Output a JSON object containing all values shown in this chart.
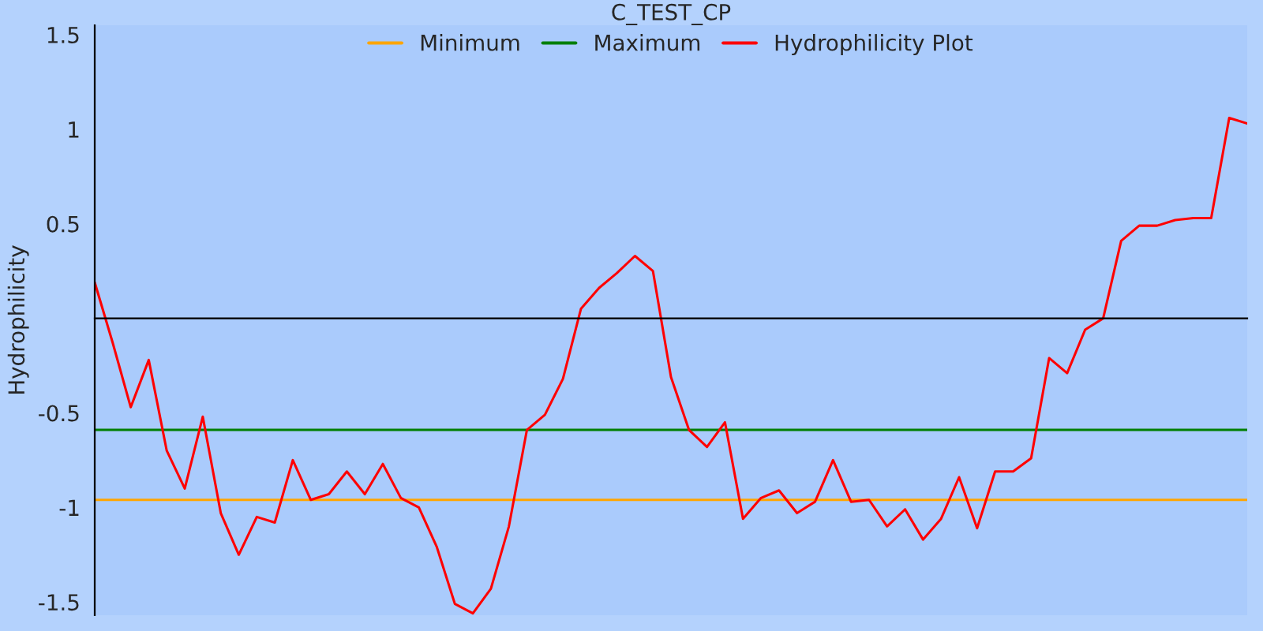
{
  "chart_data": {
    "type": "line",
    "title": "C_TEST_CP",
    "ylabel": "Hydrophilicity",
    "categories": [
      null,
      null,
      null,
      null,
      null,
      null,
      null,
      null,
      null,
      null,
      null,
      null,
      null,
      null,
      null,
      null,
      null,
      null,
      null,
      null,
      null,
      null,
      null,
      null,
      null,
      null,
      null,
      null,
      null,
      null,
      null,
      null,
      null,
      null,
      null,
      null,
      null,
      null,
      null,
      null,
      null,
      null,
      null,
      null,
      null,
      null,
      null,
      null,
      null,
      null,
      null,
      null,
      null,
      null,
      null,
      null,
      null,
      null,
      null,
      null,
      null,
      null,
      null,
      null,
      null
    ],
    "series": [
      {
        "name": "Minimum",
        "color": "#ffa500",
        "values": [
          -0.96,
          -0.96,
          -0.96,
          -0.96,
          -0.96,
          -0.96,
          -0.96,
          -0.96,
          -0.96,
          -0.96,
          -0.96,
          -0.96,
          -0.96,
          -0.96,
          -0.96,
          -0.96,
          -0.96,
          -0.96,
          -0.96,
          -0.96,
          -0.96,
          -0.96,
          -0.96,
          -0.96,
          -0.96,
          -0.96,
          -0.96,
          -0.96,
          -0.96,
          -0.96,
          -0.96,
          -0.96,
          -0.96,
          -0.96,
          -0.96,
          -0.96,
          -0.96,
          -0.96,
          -0.96,
          -0.96,
          -0.96,
          -0.96,
          -0.96,
          -0.96,
          -0.96,
          -0.96,
          -0.96,
          -0.96,
          -0.96,
          -0.96,
          -0.96,
          -0.96,
          -0.96,
          -0.96,
          -0.96,
          -0.96,
          -0.96,
          -0.96,
          -0.96,
          -0.96,
          -0.96,
          -0.96,
          -0.96,
          -0.96,
          -0.96
        ]
      },
      {
        "name": "Maximum",
        "color": "#007f00",
        "values": [
          -0.59,
          -0.59,
          -0.59,
          -0.59,
          -0.59,
          -0.59,
          -0.59,
          -0.59,
          -0.59,
          -0.59,
          -0.59,
          -0.59,
          -0.59,
          -0.59,
          -0.59,
          -0.59,
          -0.59,
          -0.59,
          -0.59,
          -0.59,
          -0.59,
          -0.59,
          -0.59,
          -0.59,
          -0.59,
          -0.59,
          -0.59,
          -0.59,
          -0.59,
          -0.59,
          -0.59,
          -0.59,
          -0.59,
          -0.59,
          -0.59,
          -0.59,
          -0.59,
          -0.59,
          -0.59,
          -0.59,
          -0.59,
          -0.59,
          -0.59,
          -0.59,
          -0.59,
          -0.59,
          -0.59,
          -0.59,
          -0.59,
          -0.59,
          -0.59,
          -0.59,
          -0.59,
          -0.59,
          -0.59,
          -0.59,
          -0.59,
          -0.59,
          -0.59,
          -0.59,
          -0.59,
          -0.59,
          -0.59,
          -0.59,
          -0.59
        ]
      },
      {
        "name": "Hydrophilicity Plot",
        "color": "#ff0000",
        "values": [
          0.19,
          -0.13,
          -0.47,
          -0.22,
          -0.7,
          -0.9,
          -0.52,
          -1.03,
          -1.25,
          -1.05,
          -1.08,
          -0.75,
          -0.96,
          -0.93,
          -0.81,
          -0.93,
          -0.77,
          -0.95,
          -1.0,
          -1.21,
          -1.51,
          -1.56,
          -1.43,
          -1.1,
          -0.59,
          -0.51,
          -0.32,
          0.05,
          0.16,
          0.24,
          0.33,
          0.25,
          -0.31,
          -0.59,
          -0.68,
          -0.55,
          -1.06,
          -0.95,
          -0.91,
          -1.03,
          -0.97,
          -0.75,
          -0.97,
          -0.96,
          -1.1,
          -1.01,
          -1.17,
          -1.06,
          -0.84,
          -1.11,
          -0.81,
          -0.81,
          -0.74,
          -0.21,
          -0.29,
          -0.06,
          0.0,
          0.41,
          0.49,
          0.49,
          0.52,
          0.53,
          0.53,
          1.06,
          1.03
        ]
      }
    ],
    "ylim": [
      -1.57,
      1.55
    ],
    "yticks": [
      1.5,
      1,
      0.5,
      -0.5,
      -1,
      -1.5
    ],
    "tick_labels": "y",
    "legend": "top",
    "grid": false,
    "marker": "none",
    "line_style": "solid"
  }
}
